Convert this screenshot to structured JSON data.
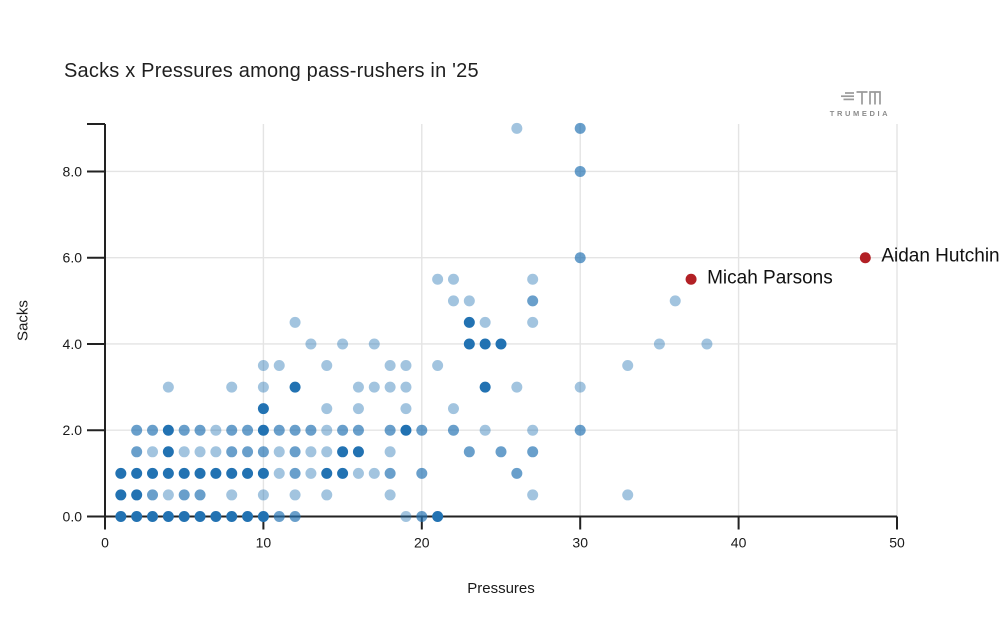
{
  "branding": {
    "brand_name": "TRUMEDIA",
    "logo_glyph": "TM"
  },
  "chart_data": {
    "type": "scatter",
    "title": "Sacks x Pressures among pass-rushers in '25",
    "xlabel": "Pressures",
    "ylabel": "Sacks",
    "xlim": [
      0,
      50
    ],
    "ylim": [
      0,
      9.1
    ],
    "x_ticks": [
      0,
      10,
      20,
      30,
      40,
      50
    ],
    "x_tick_labels": [
      "0",
      "10",
      "20",
      "30",
      "40",
      "50"
    ],
    "y_ticks": [
      0,
      2,
      4,
      6,
      8
    ],
    "y_tick_labels": [
      "0.0",
      "2.0",
      "4.0",
      "6.0",
      "8.0"
    ],
    "grid": true,
    "legend": "none",
    "colors": {
      "dot_base": "#2272b2",
      "highlight": "#b22025",
      "grid": "#e4e4e4",
      "axis": "#222222",
      "label_text": "#111111"
    },
    "shade_opacity": {
      "d": 1.0,
      "m": 0.68,
      "l": 0.42
    },
    "points": [
      [
        1,
        0,
        "d"
      ],
      [
        2,
        0,
        "d"
      ],
      [
        3,
        0,
        "d"
      ],
      [
        4,
        0,
        "d"
      ],
      [
        5,
        0,
        "d"
      ],
      [
        6,
        0,
        "d"
      ],
      [
        7,
        0,
        "d"
      ],
      [
        8,
        0,
        "d"
      ],
      [
        9,
        0,
        "d"
      ],
      [
        10,
        0,
        "d"
      ],
      [
        11,
        0,
        "m"
      ],
      [
        12,
        0,
        "m"
      ],
      [
        19,
        0,
        "l"
      ],
      [
        20,
        0,
        "m"
      ],
      [
        21,
        0,
        "d"
      ],
      [
        1,
        0.5,
        "d"
      ],
      [
        2,
        0.5,
        "d"
      ],
      [
        3,
        0.5,
        "m"
      ],
      [
        4,
        0.5,
        "l"
      ],
      [
        5,
        0.5,
        "m"
      ],
      [
        6,
        0.5,
        "m"
      ],
      [
        8,
        0.5,
        "l"
      ],
      [
        10,
        0.5,
        "l"
      ],
      [
        12,
        0.5,
        "l"
      ],
      [
        14,
        0.5,
        "l"
      ],
      [
        18,
        0.5,
        "l"
      ],
      [
        27,
        0.5,
        "l"
      ],
      [
        33,
        0.5,
        "l"
      ],
      [
        1,
        1,
        "d"
      ],
      [
        2,
        1,
        "d"
      ],
      [
        3,
        1,
        "d"
      ],
      [
        4,
        1,
        "d"
      ],
      [
        5,
        1,
        "d"
      ],
      [
        6,
        1,
        "d"
      ],
      [
        7,
        1,
        "d"
      ],
      [
        8,
        1,
        "d"
      ],
      [
        9,
        1,
        "d"
      ],
      [
        10,
        1,
        "d"
      ],
      [
        11,
        1,
        "l"
      ],
      [
        12,
        1,
        "m"
      ],
      [
        13,
        1,
        "l"
      ],
      [
        14,
        1,
        "d"
      ],
      [
        15,
        1,
        "d"
      ],
      [
        16,
        1,
        "l"
      ],
      [
        17,
        1,
        "l"
      ],
      [
        18,
        1,
        "m"
      ],
      [
        20,
        1,
        "m"
      ],
      [
        26,
        1,
        "m"
      ],
      [
        2,
        1.5,
        "m"
      ],
      [
        3,
        1.5,
        "l"
      ],
      [
        4,
        1.5,
        "d"
      ],
      [
        5,
        1.5,
        "l"
      ],
      [
        6,
        1.5,
        "l"
      ],
      [
        7,
        1.5,
        "l"
      ],
      [
        8,
        1.5,
        "m"
      ],
      [
        9,
        1.5,
        "m"
      ],
      [
        10,
        1.5,
        "m"
      ],
      [
        11,
        1.5,
        "l"
      ],
      [
        12,
        1.5,
        "m"
      ],
      [
        13,
        1.5,
        "l"
      ],
      [
        14,
        1.5,
        "l"
      ],
      [
        15,
        1.5,
        "d"
      ],
      [
        16,
        1.5,
        "d"
      ],
      [
        18,
        1.5,
        "l"
      ],
      [
        23,
        1.5,
        "m"
      ],
      [
        25,
        1.5,
        "m"
      ],
      [
        27,
        1.5,
        "m"
      ],
      [
        2,
        2,
        "m"
      ],
      [
        3,
        2,
        "m"
      ],
      [
        4,
        2,
        "d"
      ],
      [
        5,
        2,
        "m"
      ],
      [
        6,
        2,
        "m"
      ],
      [
        7,
        2,
        "l"
      ],
      [
        8,
        2,
        "m"
      ],
      [
        9,
        2,
        "m"
      ],
      [
        10,
        2,
        "d"
      ],
      [
        11,
        2,
        "m"
      ],
      [
        12,
        2,
        "m"
      ],
      [
        13,
        2,
        "m"
      ],
      [
        14,
        2,
        "l"
      ],
      [
        15,
        2,
        "m"
      ],
      [
        16,
        2,
        "m"
      ],
      [
        18,
        2,
        "m"
      ],
      [
        19,
        2,
        "d"
      ],
      [
        20,
        2,
        "m"
      ],
      [
        22,
        2,
        "m"
      ],
      [
        24,
        2,
        "l"
      ],
      [
        27,
        2,
        "l"
      ],
      [
        30,
        2,
        "m"
      ],
      [
        10,
        2.5,
        "d"
      ],
      [
        14,
        2.5,
        "l"
      ],
      [
        16,
        2.5,
        "l"
      ],
      [
        19,
        2.5,
        "l"
      ],
      [
        22,
        2.5,
        "l"
      ],
      [
        4,
        3,
        "l"
      ],
      [
        8,
        3,
        "l"
      ],
      [
        10,
        3,
        "l"
      ],
      [
        12,
        3,
        "d"
      ],
      [
        16,
        3,
        "l"
      ],
      [
        17,
        3,
        "l"
      ],
      [
        18,
        3,
        "l"
      ],
      [
        19,
        3,
        "l"
      ],
      [
        24,
        3,
        "d"
      ],
      [
        26,
        3,
        "l"
      ],
      [
        30,
        3,
        "l"
      ],
      [
        10,
        3.5,
        "l"
      ],
      [
        11,
        3.5,
        "l"
      ],
      [
        14,
        3.5,
        "l"
      ],
      [
        18,
        3.5,
        "l"
      ],
      [
        19,
        3.5,
        "l"
      ],
      [
        21,
        3.5,
        "l"
      ],
      [
        33,
        3.5,
        "l"
      ],
      [
        13,
        4,
        "l"
      ],
      [
        15,
        4,
        "l"
      ],
      [
        17,
        4,
        "l"
      ],
      [
        23,
        4,
        "d"
      ],
      [
        24,
        4,
        "d"
      ],
      [
        25,
        4,
        "d"
      ],
      [
        35,
        4,
        "l"
      ],
      [
        38,
        4,
        "l"
      ],
      [
        12,
        4.5,
        "l"
      ],
      [
        23,
        4.5,
        "d"
      ],
      [
        24,
        4.5,
        "l"
      ],
      [
        27,
        4.5,
        "l"
      ],
      [
        22,
        5,
        "l"
      ],
      [
        23,
        5,
        "l"
      ],
      [
        27,
        5,
        "m"
      ],
      [
        36,
        5,
        "l"
      ],
      [
        21,
        5.5,
        "l"
      ],
      [
        22,
        5.5,
        "l"
      ],
      [
        27,
        5.5,
        "l"
      ],
      [
        30,
        6,
        "m"
      ],
      [
        30,
        8,
        "m"
      ],
      [
        26,
        9,
        "l"
      ],
      [
        30,
        9,
        "m"
      ]
    ],
    "labeled_points": [
      {
        "name": "Micah Parsons",
        "x": 37,
        "y": 5.5
      },
      {
        "name": "Aidan Hutchinson",
        "x": 48,
        "y": 6.0
      }
    ]
  }
}
